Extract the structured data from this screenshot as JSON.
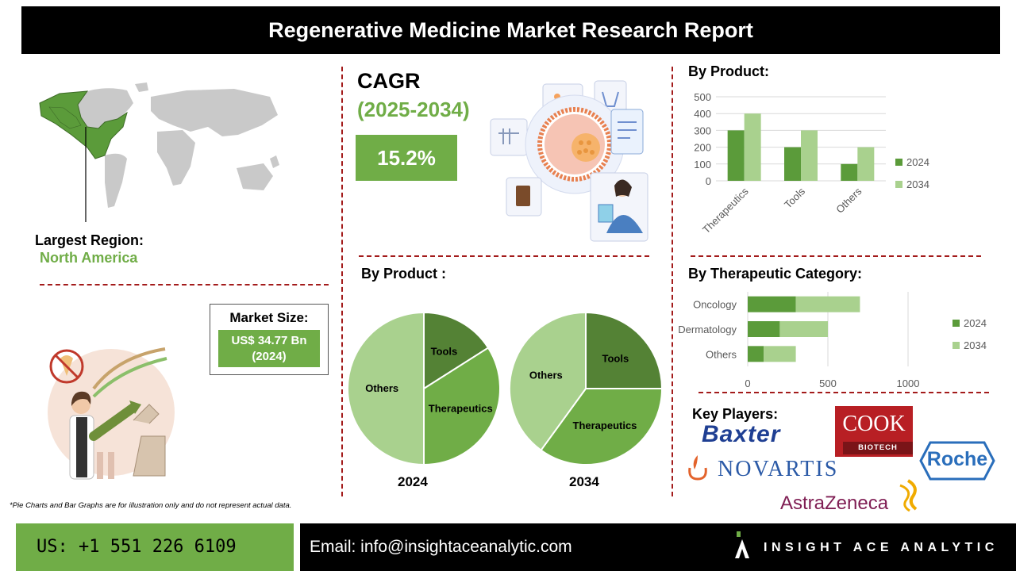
{
  "title": "Regenerative Medicine Market Research Report",
  "region": {
    "label": "Largest Region:",
    "value": "North America"
  },
  "cagr": {
    "label": "CAGR",
    "period": "(2025-2034)",
    "value": "15.2%"
  },
  "market_size": {
    "label": "Market Size:",
    "value_line1": "US$ 34.77 Bn",
    "value_line2": "(2024)"
  },
  "pie_section": {
    "title": "By Product :",
    "year1": "2024",
    "year2": "2034"
  },
  "bar_section1": {
    "title": "By Product:"
  },
  "bar_section2": {
    "title": "By Therapeutic Category:"
  },
  "key_players": {
    "title": "Key Players:",
    "logos": [
      "Baxter",
      "COOK",
      "BIOTECH",
      "NOVARTIS",
      "Roche",
      "AstraZeneca"
    ]
  },
  "footnote": "*Pie Charts and Bar Graphs are for illustration only and do not represent actual data.",
  "footer": {
    "phone": "US: +1 551 226 6109",
    "email": "Email: info@insightaceanalytic.com",
    "brand": "INSIGHT ACE ANALYTIC"
  },
  "colors": {
    "dark_green": "#5b9b3a",
    "light_green": "#a9d18e",
    "accent": "#70ad47",
    "divider": "#a31b1b"
  },
  "chart_data": [
    {
      "type": "pie",
      "title": "2024",
      "labels": [
        "Tools",
        "Therapeutics",
        "Others"
      ],
      "values": [
        16,
        34,
        50
      ],
      "colors": [
        "#548235",
        "#70ad47",
        "#a9d18e"
      ]
    },
    {
      "type": "pie",
      "title": "2034",
      "labels": [
        "Tools",
        "Therapeutics",
        "Others"
      ],
      "values": [
        25,
        35,
        40
      ],
      "colors": [
        "#548235",
        "#70ad47",
        "#a9d18e"
      ]
    },
    {
      "type": "bar",
      "title": "By Product:",
      "categories": [
        "Therapeutics",
        "Tools",
        "Others"
      ],
      "series": [
        {
          "name": "2024",
          "values": [
            300,
            200,
            100
          ]
        },
        {
          "name": "2034",
          "values": [
            400,
            300,
            200
          ]
        }
      ],
      "ylim": [
        0,
        500
      ],
      "yticks": [
        "0",
        "100",
        "200",
        "300",
        "400",
        "500"
      ],
      "legend": "right"
    },
    {
      "type": "bar",
      "orientation": "horizontal",
      "stacked": true,
      "title": "By Therapeutic Category:",
      "categories": [
        "Oncology",
        "Dermatology",
        "Others"
      ],
      "series": [
        {
          "name": "2024",
          "values": [
            300,
            200,
            100
          ]
        },
        {
          "name": "2034",
          "values": [
            400,
            300,
            200
          ]
        }
      ],
      "xlim": [
        0,
        1000
      ],
      "xticks": [
        "0",
        "500",
        "1000"
      ],
      "legend": "right"
    }
  ]
}
